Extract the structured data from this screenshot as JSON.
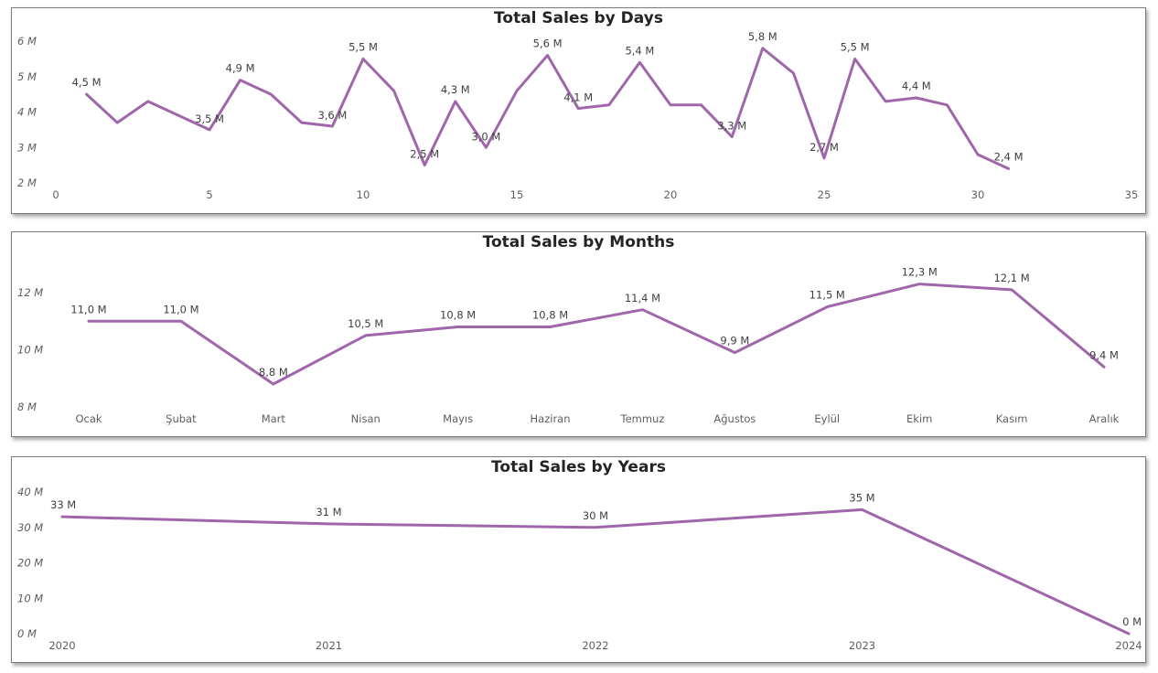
{
  "colors": {
    "line": "#a066aa",
    "axis_text": "#605e5c",
    "label_text": "#404040"
  },
  "chart_data": [
    {
      "type": "line",
      "title": "Total Sales by Days",
      "x": [
        1,
        2,
        3,
        4,
        5,
        6,
        7,
        8,
        9,
        10,
        11,
        12,
        13,
        14,
        15,
        16,
        17,
        18,
        19,
        20,
        21,
        22,
        23,
        24,
        25,
        26,
        27,
        28,
        29,
        30,
        31
      ],
      "values": [
        4.5,
        3.7,
        4.3,
        3.9,
        3.5,
        4.9,
        4.5,
        3.7,
        3.6,
        5.5,
        4.6,
        2.5,
        4.3,
        3.0,
        4.6,
        5.6,
        4.1,
        4.2,
        5.4,
        4.2,
        4.2,
        3.3,
        5.8,
        5.1,
        2.7,
        5.5,
        4.3,
        4.4,
        4.2,
        2.8,
        2.4
      ],
      "unit": "M",
      "xlim": [
        0,
        35
      ],
      "ylim": [
        2,
        6
      ],
      "x_ticks": [
        "0",
        "5",
        "10",
        "15",
        "20",
        "25",
        "30",
        "35"
      ],
      "y_ticks": [
        "2 M",
        "3 M",
        "4 M",
        "5 M",
        "6 M"
      ],
      "data_labels": [
        {
          "x": 1,
          "y": 4.5,
          "text": "4,5 M"
        },
        {
          "x": 5,
          "y": 3.5,
          "text": "3,5 M"
        },
        {
          "x": 6,
          "y": 4.9,
          "text": "4,9 M"
        },
        {
          "x": 9,
          "y": 3.6,
          "text": "3,6 M"
        },
        {
          "x": 10,
          "y": 5.5,
          "text": "5,5 M"
        },
        {
          "x": 12,
          "y": 2.5,
          "text": "2,5 M"
        },
        {
          "x": 13,
          "y": 4.3,
          "text": "4,3 M"
        },
        {
          "x": 14,
          "y": 3.0,
          "text": "3,0 M"
        },
        {
          "x": 16,
          "y": 5.6,
          "text": "5,6 M"
        },
        {
          "x": 17,
          "y": 4.1,
          "text": "4,1 M"
        },
        {
          "x": 19,
          "y": 5.4,
          "text": "5,4 M"
        },
        {
          "x": 22,
          "y": 3.3,
          "text": "3,3 M"
        },
        {
          "x": 23,
          "y": 5.8,
          "text": "5,8 M"
        },
        {
          "x": 25,
          "y": 2.7,
          "text": "2,7 M"
        },
        {
          "x": 26,
          "y": 5.5,
          "text": "5,5 M"
        },
        {
          "x": 28,
          "y": 4.4,
          "text": "4,4 M"
        },
        {
          "x": 31,
          "y": 2.4,
          "text": "2,4 M"
        }
      ]
    },
    {
      "type": "line",
      "title": "Total Sales by Months",
      "categories": [
        "Ocak",
        "Şubat",
        "Mart",
        "Nisan",
        "Mayıs",
        "Haziran",
        "Temmuz",
        "Ağustos",
        "Eylül",
        "Ekim",
        "Kasım",
        "Aralık"
      ],
      "values": [
        11.0,
        11.0,
        8.8,
        10.5,
        10.8,
        10.8,
        11.4,
        9.9,
        11.5,
        12.3,
        12.1,
        9.4
      ],
      "value_labels": [
        "11,0 M",
        "11,0 M",
        "8,8 M",
        "10,5 M",
        "10,8 M",
        "10,8 M",
        "11,4 M",
        "9,9 M",
        "11,5 M",
        "12,3 M",
        "12,1 M",
        "9,4 M"
      ],
      "unit": "M",
      "ylim": [
        8,
        12
      ],
      "y_ticks": [
        "8 M",
        "10 M",
        "12 M"
      ]
    },
    {
      "type": "line",
      "title": "Total Sales by Years",
      "categories": [
        "2020",
        "2021",
        "2022",
        "2023",
        "2024"
      ],
      "values": [
        33,
        31,
        30,
        35,
        0
      ],
      "value_labels": [
        "33 M",
        "31 M",
        "30 M",
        "35 M",
        "0 M"
      ],
      "unit": "M",
      "ylim": [
        0,
        40
      ],
      "y_ticks": [
        "0 M",
        "10 M",
        "20 M",
        "30 M",
        "40 M"
      ]
    }
  ]
}
